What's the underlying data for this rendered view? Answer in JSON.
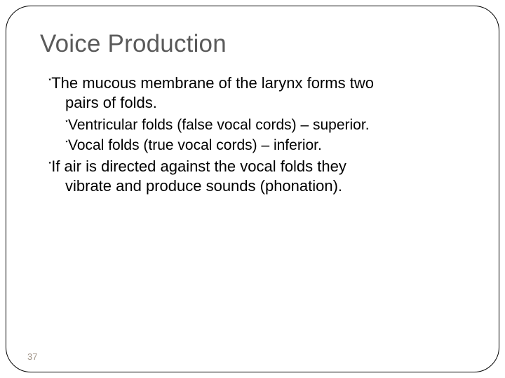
{
  "slide": {
    "title": "Voice Production",
    "title_color": "#5a5a5a",
    "title_fontsize": 35,
    "body_color": "#000000",
    "body_fontsize": 22,
    "background_color": "#ffffff",
    "border_color": "#000000",
    "border_radius": 36,
    "bullet_glyph": "༌",
    "page_number": "37",
    "page_number_color": "#a09488",
    "bullets": [
      {
        "level": 1,
        "line1": "The mucous membrane of the larynx forms two",
        "line2": "pairs of folds."
      },
      {
        "level": 2,
        "text": "Ventricular folds (false vocal cords) – superior."
      },
      {
        "level": 2,
        "text": "Vocal folds (true vocal cords) – inferior."
      },
      {
        "level": 1,
        "line1": "If air is directed against the vocal folds they",
        "line2": "vibrate and produce sounds (phonation)."
      }
    ]
  }
}
